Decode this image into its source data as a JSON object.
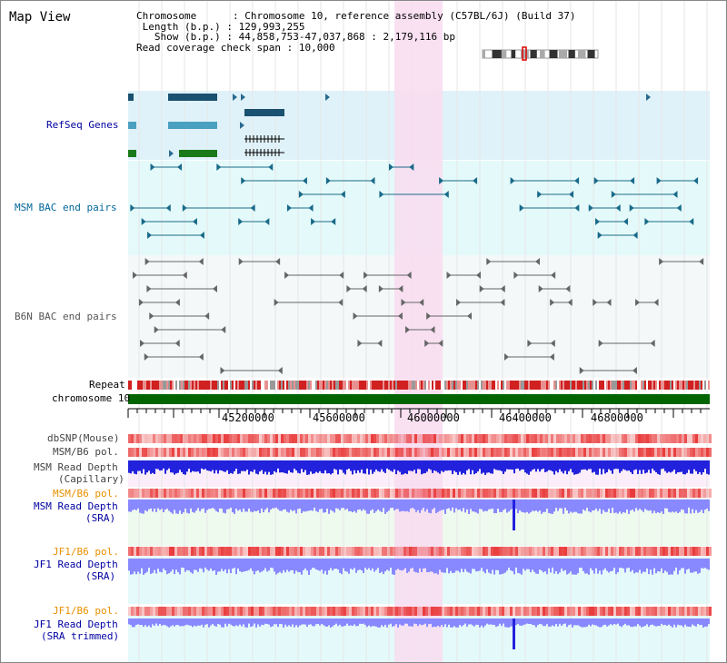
{
  "title": "Map View",
  "info": {
    "chromosome_label": "Chromosome",
    "chromosome_value": "Chromosome 10, reference assembly (C57BL/6J) (Build 37)",
    "length_label": "Length (b.p.)",
    "length_value": "129,993,255",
    "show_label": "Show (b.p.)",
    "show_value": "44,858,753-47,037,868 : 2,179,116 bp",
    "coverage_label": "Read coverage check span",
    "coverage_value": "10,000"
  },
  "tracks": {
    "refseq": "RefSeq Genes",
    "msm_bac": "MSM BAC end pairs",
    "b6n_bac": "B6N BAC end pairs",
    "repeat": "Repeat",
    "chromosome": "chromosome 10",
    "dbsnp": "dbSNP(Mouse)",
    "msm_b6_pol_1": "MSM/B6 pol.",
    "msm_depth_cap_1": "MSM Read Depth",
    "msm_depth_cap_2": "(Capillary)",
    "msm_b6_pol_2": "MSM/B6 pol.",
    "msm_depth_sra_1": "MSM Read Depth",
    "msm_depth_sra_2": "(SRA)",
    "jf1_b6_pol_1": "JF1/B6 pol.",
    "jf1_depth_sra_1": "JF1 Read Depth",
    "jf1_depth_sra_2": "(SRA)",
    "jf1_b6_pol_2": "JF1/B6 pol.",
    "jf1_depth_trim_1": "JF1 Read Depth",
    "jf1_depth_trim_2": "(SRA trimmed)"
  },
  "ruler": {
    "ticks": [
      "45200000",
      "45600000",
      "46000000",
      "46400000",
      "46800000"
    ]
  },
  "colors": {
    "refseq_bg": "#e0f2f9",
    "msm_bg": "#e4fafa",
    "b6n_bg": "#f4f8f8",
    "highlight": "#f8dcf0",
    "chrom_bar": "#006400",
    "pol_red": "#e83030",
    "depth_blue": "#2222dd",
    "depth_light": "#8888ff",
    "label_blue": "#0000a0",
    "label_orange": "#e89000",
    "label_teal": "#006699"
  }
}
